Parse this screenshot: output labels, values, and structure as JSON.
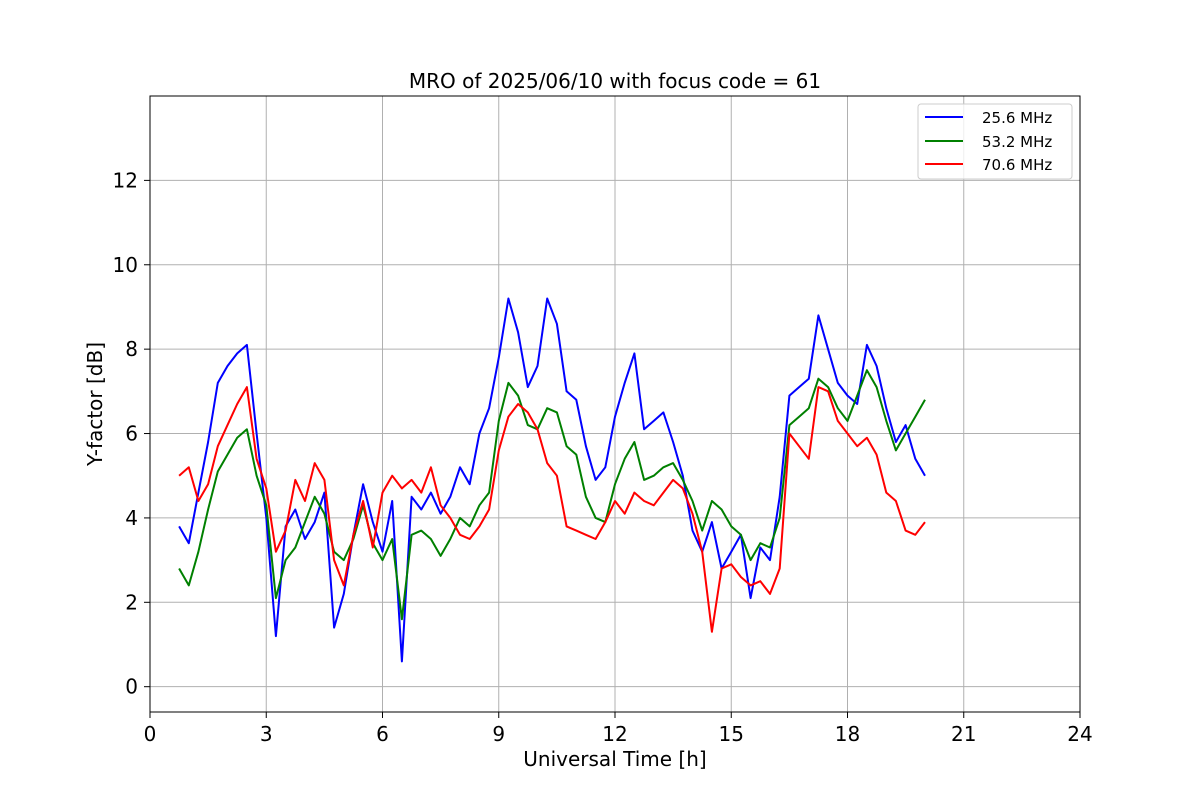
{
  "chart_data": {
    "type": "line",
    "title": "MRO of 2025/06/10 with focus code = 61",
    "xlabel": "Universal Time [h]",
    "ylabel": "Y-factor [dB]",
    "xlim": [
      0,
      24
    ],
    "ylim": [
      -0.6,
      14
    ],
    "xticks": [
      0,
      3,
      6,
      9,
      12,
      15,
      18,
      21,
      24
    ],
    "yticks": [
      0,
      2,
      4,
      6,
      8,
      10,
      12
    ],
    "grid": true,
    "legend_position": "top-right",
    "series": [
      {
        "name": "25.6 MHz",
        "color": "#0000ff",
        "x": [
          0.75,
          1.0,
          1.25,
          1.5,
          1.75,
          2.0,
          2.25,
          2.5,
          2.75,
          3.0,
          3.25,
          3.5,
          3.75,
          4.0,
          4.25,
          4.5,
          4.75,
          5.0,
          5.25,
          5.5,
          5.75,
          6.0,
          6.25,
          6.5,
          6.75,
          7.0,
          7.25,
          7.5,
          7.75,
          8.0,
          8.25,
          8.5,
          8.75,
          9.0,
          9.25,
          9.5,
          9.75,
          10.0,
          10.25,
          10.5,
          10.75,
          11.0,
          11.25,
          11.5,
          11.75,
          12.0,
          12.25,
          12.5,
          12.75,
          13.0,
          13.25,
          13.5,
          13.75,
          14.0,
          14.25,
          14.5,
          14.75,
          15.0,
          15.25,
          15.5,
          15.75,
          16.0,
          16.25,
          16.5,
          16.75,
          17.0,
          17.25,
          17.5,
          17.75,
          18.0,
          18.25,
          18.5,
          18.75,
          19.0,
          19.25,
          19.5,
          19.75,
          20.0
        ],
        "y": [
          3.8,
          3.4,
          4.6,
          5.8,
          7.2,
          7.6,
          7.9,
          8.1,
          6.0,
          4.0,
          1.2,
          3.8,
          4.2,
          3.5,
          3.9,
          4.6,
          1.4,
          2.2,
          3.6,
          4.8,
          3.9,
          3.2,
          4.4,
          0.6,
          4.5,
          4.2,
          4.6,
          4.1,
          4.5,
          5.2,
          4.8,
          6.0,
          6.6,
          7.8,
          9.2,
          8.4,
          7.1,
          7.6,
          9.2,
          8.6,
          7.0,
          6.8,
          5.7,
          4.9,
          5.2,
          6.4,
          7.2,
          7.9,
          6.1,
          6.3,
          6.5,
          5.8,
          5.0,
          3.7,
          3.2,
          3.9,
          2.8,
          3.2,
          3.6,
          2.1,
          3.3,
          3.0,
          4.5,
          6.9,
          7.1,
          7.3,
          8.8,
          8.0,
          7.2,
          6.9,
          6.7,
          8.1,
          7.6,
          6.6,
          5.8,
          6.2,
          5.4,
          5.0
        ]
      },
      {
        "name": "53.2 MHz",
        "color": "#008000",
        "x": [
          0.75,
          1.0,
          1.25,
          1.5,
          1.75,
          2.0,
          2.25,
          2.5,
          2.75,
          3.0,
          3.25,
          3.5,
          3.75,
          4.0,
          4.25,
          4.5,
          4.75,
          5.0,
          5.25,
          5.5,
          5.75,
          6.0,
          6.25,
          6.5,
          6.75,
          7.0,
          7.25,
          7.5,
          7.75,
          8.0,
          8.25,
          8.5,
          8.75,
          9.0,
          9.25,
          9.5,
          9.75,
          10.0,
          10.25,
          10.5,
          10.75,
          11.0,
          11.25,
          11.5,
          11.75,
          12.0,
          12.25,
          12.5,
          12.75,
          13.0,
          13.25,
          13.5,
          13.75,
          14.0,
          14.25,
          14.5,
          14.75,
          15.0,
          15.25,
          15.5,
          15.75,
          16.0,
          16.25,
          16.5,
          16.75,
          17.0,
          17.25,
          17.5,
          17.75,
          18.0,
          18.25,
          18.5,
          18.75,
          19.0,
          19.25,
          19.5,
          19.75,
          20.0
        ],
        "y": [
          2.8,
          2.4,
          3.2,
          4.2,
          5.1,
          5.5,
          5.9,
          6.1,
          5.0,
          4.3,
          2.1,
          3.0,
          3.3,
          3.9,
          4.5,
          4.1,
          3.2,
          3.0,
          3.5,
          4.3,
          3.4,
          3.0,
          3.5,
          1.6,
          3.6,
          3.7,
          3.5,
          3.1,
          3.5,
          4.0,
          3.8,
          4.3,
          4.6,
          6.3,
          7.2,
          6.9,
          6.2,
          6.1,
          6.6,
          6.5,
          5.7,
          5.5,
          4.5,
          4.0,
          3.9,
          4.8,
          5.4,
          5.8,
          4.9,
          5.0,
          5.2,
          5.3,
          4.9,
          4.4,
          3.7,
          4.4,
          4.2,
          3.8,
          3.6,
          3.0,
          3.4,
          3.3,
          4.0,
          6.2,
          6.4,
          6.6,
          7.3,
          7.1,
          6.6,
          6.3,
          6.9,
          7.5,
          7.1,
          6.3,
          5.6,
          6.0,
          6.4,
          6.8
        ]
      },
      {
        "name": "70.6 MHz",
        "color": "#ff0000",
        "x": [
          0.75,
          1.0,
          1.25,
          1.5,
          1.75,
          2.0,
          2.25,
          2.5,
          2.75,
          3.0,
          3.25,
          3.5,
          3.75,
          4.0,
          4.25,
          4.5,
          4.75,
          5.0,
          5.25,
          5.5,
          5.75,
          6.0,
          6.25,
          6.5,
          6.75,
          7.0,
          7.25,
          7.5,
          7.75,
          8.0,
          8.25,
          8.5,
          8.75,
          9.0,
          9.25,
          9.5,
          9.75,
          10.0,
          10.25,
          10.5,
          10.75,
          11.0,
          11.25,
          11.5,
          11.75,
          12.0,
          12.25,
          12.5,
          12.75,
          13.0,
          13.25,
          13.5,
          13.75,
          14.0,
          14.25,
          14.5,
          14.75,
          15.0,
          15.25,
          15.5,
          15.75,
          16.0,
          16.25,
          16.5,
          16.75,
          17.0,
          17.25,
          17.5,
          17.75,
          18.0,
          18.25,
          18.5,
          18.75,
          19.0,
          19.25,
          19.5,
          19.75,
          20.0
        ],
        "y": [
          5.0,
          5.2,
          4.4,
          4.8,
          5.7,
          6.2,
          6.7,
          7.1,
          5.4,
          4.7,
          3.2,
          3.7,
          4.9,
          4.4,
          5.3,
          4.9,
          3.0,
          2.4,
          3.6,
          4.4,
          3.3,
          4.6,
          5.0,
          4.7,
          4.9,
          4.6,
          5.2,
          4.3,
          4.0,
          3.6,
          3.5,
          3.8,
          4.2,
          5.6,
          6.4,
          6.7,
          6.5,
          6.1,
          5.3,
          5.0,
          3.8,
          3.7,
          3.6,
          3.5,
          3.9,
          4.4,
          4.1,
          4.6,
          4.4,
          4.3,
          4.6,
          4.9,
          4.7,
          4.1,
          3.2,
          1.3,
          2.8,
          2.9,
          2.6,
          2.4,
          2.5,
          2.2,
          2.8,
          6.0,
          5.7,
          5.4,
          7.1,
          7.0,
          6.3,
          6.0,
          5.7,
          5.9,
          5.5,
          4.6,
          4.4,
          3.7,
          3.6,
          3.9
        ]
      }
    ]
  }
}
